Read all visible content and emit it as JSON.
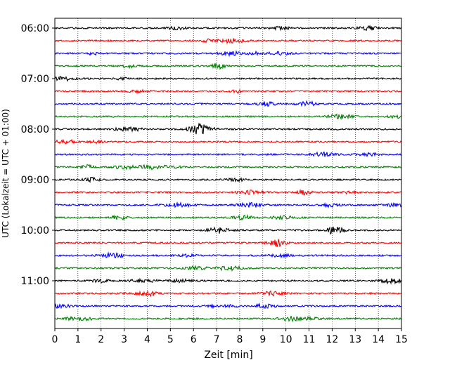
{
  "chart_data": {
    "type": "line",
    "title": "",
    "xlabel": "Zeit  [min]",
    "ylabel": "UTC (Lokalzeit = UTC + 01:00)",
    "xlim": [
      0,
      15
    ],
    "x_ticks": [
      0,
      1,
      2,
      3,
      4,
      5,
      6,
      7,
      8,
      9,
      10,
      11,
      12,
      13,
      14,
      15
    ],
    "x_tick_labels": [
      "0",
      "1",
      "2",
      "3",
      "4",
      "5",
      "6",
      "7",
      "8",
      "9",
      "10",
      "11",
      "12",
      "13",
      "14",
      "15"
    ],
    "y_tick_labels": [
      "06:00",
      "07:00",
      "08:00",
      "09:00",
      "10:00",
      "11:00"
    ],
    "y_tick_row_index": [
      0,
      4,
      8,
      12,
      16,
      20
    ],
    "trace_interval_min": 15,
    "trace_count": 24,
    "first_trace_start": "06:00",
    "trace_start_times": [
      "06:00",
      "06:15",
      "06:30",
      "06:45",
      "07:00",
      "07:15",
      "07:30",
      "07:45",
      "08:00",
      "08:15",
      "08:30",
      "08:45",
      "09:00",
      "09:15",
      "09:30",
      "09:45",
      "10:00",
      "10:15",
      "10:30",
      "10:45",
      "11:00",
      "11:15",
      "11:30",
      "11:45"
    ],
    "trace_colors": [
      "#000000",
      "#ff0000",
      "#0000ff",
      "#008000"
    ],
    "grid": {
      "vertical": true,
      "style": "dotted"
    },
    "legend": "none"
  }
}
